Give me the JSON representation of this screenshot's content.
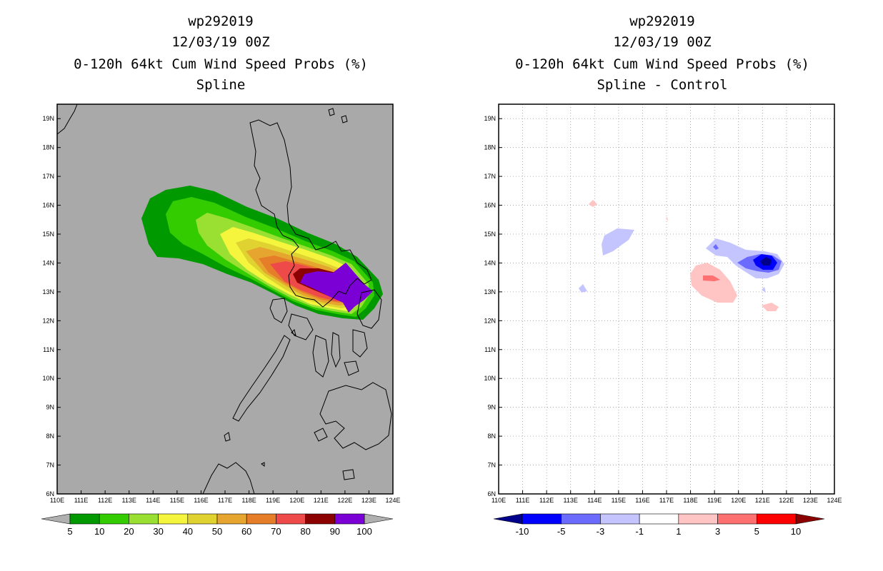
{
  "left_panel": {
    "title_line1": "wp292019",
    "title_line2": "12/03/19 00Z",
    "title_line3": "0-120h 64kt Cum Wind Speed Probs (%)",
    "title_line4": "Spline"
  },
  "right_panel": {
    "title_line1": "wp292019",
    "title_line2": "12/03/19 00Z",
    "title_line3": "0-120h 64kt Cum Wind Speed Probs (%)",
    "title_line4": "Spline - Control"
  },
  "map_extent": {
    "lon_range": [
      110,
      124
    ],
    "lat_range": [
      6,
      19.5
    ],
    "background_left": "#a9a9a9",
    "background_right": "#ffffff"
  },
  "x_ticks": [
    "110E",
    "111E",
    "112E",
    "113E",
    "114E",
    "115E",
    "116E",
    "117E",
    "118E",
    "119E",
    "120E",
    "121E",
    "122E",
    "123E",
    "124E"
  ],
  "y_ticks": [
    "6N",
    "7N",
    "8N",
    "9N",
    "10N",
    "11N",
    "12N",
    "13N",
    "14N",
    "15N",
    "16N",
    "17N",
    "18N",
    "19N"
  ],
  "left_colorbar": {
    "labels": [
      "5",
      "10",
      "20",
      "30",
      "40",
      "50",
      "60",
      "70",
      "80",
      "90",
      "100"
    ],
    "colors": [
      "#009900",
      "#33cc00",
      "#99e033",
      "#f5f53d",
      "#e0d230",
      "#e6a52e",
      "#e67d28",
      "#ee4a4a",
      "#8b0000",
      "#7a00d6"
    ],
    "end_color": "#b0b0b0"
  },
  "right_colorbar": {
    "labels": [
      "-10",
      "-5",
      "-3",
      "-1",
      "1",
      "3",
      "5",
      "10"
    ],
    "colors": [
      "#0000ff",
      "#6b6bff",
      "#c4c4ff",
      "#ffffff",
      "#ffc4c4",
      "#ff7070",
      "#ff0000"
    ],
    "low_end_color": "#00008b",
    "high_end_color": "#8b0000"
  }
}
